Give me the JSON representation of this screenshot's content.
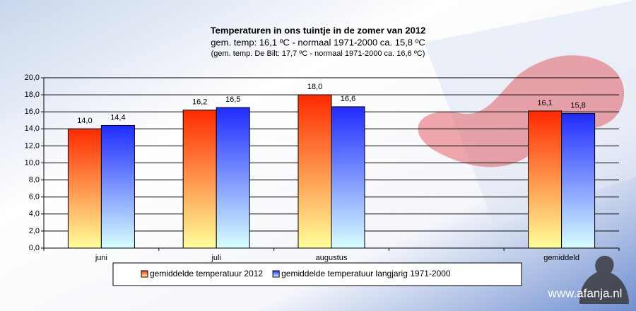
{
  "chart_data": {
    "type": "bar",
    "title": "Temperaturen  in ons tuintje  in de zomer  van 2012",
    "subtitle": "gem.  temp:  16,1 ºC - normaal  1971-2000  ca. 15,8 ºC",
    "note": "(gem. temp. De Bilt: 17,7 ºC - normaal 1971-2000 ca. 16,6 ºC)",
    "watermark": "www.afanja.nl",
    "categories": [
      "juni",
      "juli",
      "augustus",
      null,
      "gemiddeld"
    ],
    "series": [
      {
        "name": "gemiddelde temperatuur 2012",
        "color": "#ff2a00",
        "values": [
          14.0,
          16.2,
          18.0,
          null,
          16.1
        ],
        "value_labels": [
          "14,0",
          "16,2",
          "18,0",
          null,
          "16,1"
        ]
      },
      {
        "name": "gemiddelde temperatuur langjarig 1971-2000",
        "color": "#1f2bff",
        "values": [
          14.4,
          16.5,
          16.6,
          null,
          15.8
        ],
        "value_labels": [
          "14,4",
          "16,5",
          "16,6",
          null,
          "15,8"
        ]
      }
    ],
    "ylim": [
      0,
      20
    ],
    "yticks": [
      {
        "value": 0,
        "label": "0,0"
      },
      {
        "value": 2,
        "label": "2,0"
      },
      {
        "value": 4,
        "label": "4,0"
      },
      {
        "value": 6,
        "label": "6,0"
      },
      {
        "value": 8,
        "label": "8,0"
      },
      {
        "value": 10,
        "label": "10,0"
      },
      {
        "value": 12,
        "label": "12,0"
      },
      {
        "value": 14,
        "label": "14,0"
      },
      {
        "value": 16,
        "label": "16,0"
      },
      {
        "value": 18,
        "label": "18,0"
      },
      {
        "value": 20,
        "label": "20,0"
      }
    ],
    "grid": true,
    "legend": "bottom"
  }
}
